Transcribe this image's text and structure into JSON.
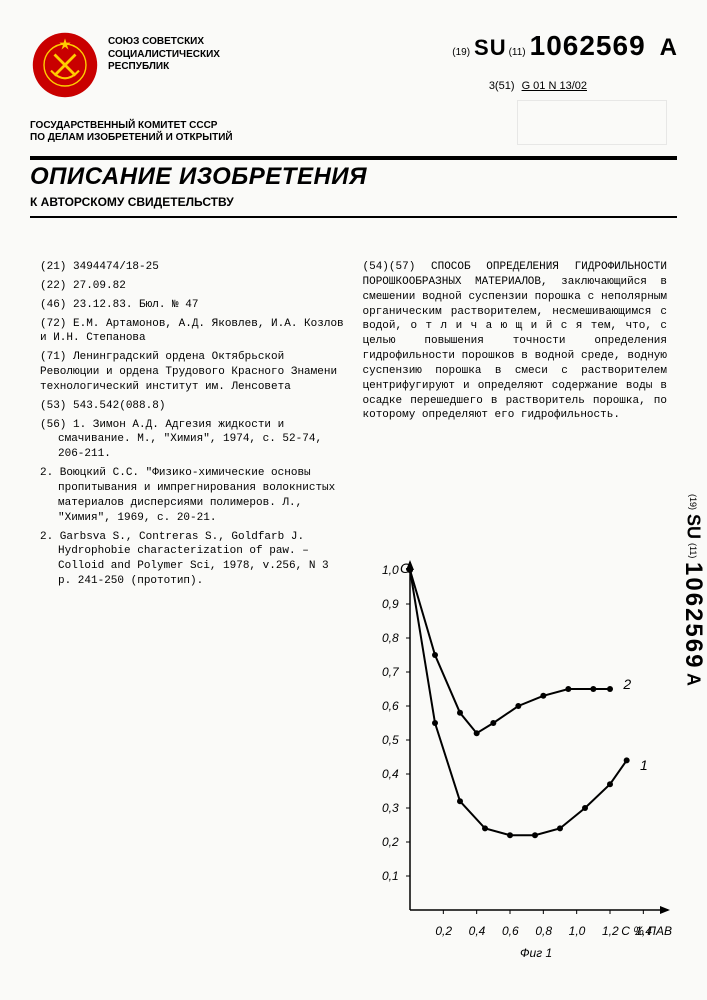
{
  "header": {
    "issuer_line1": "СОЮЗ СОВЕТСКИХ",
    "issuer_line2": "СОЦИАЛИСТИЧЕСКИХ",
    "issuer_line3": "РЕСПУБЛИК",
    "kind19": "(19)",
    "cc": "SU",
    "kind11": "(11)",
    "docnum": "1062569",
    "kindA": "A",
    "ipc_label": "3(51)",
    "ipc": "G 01 N 13/02",
    "committee_l1": "ГОСУДАРСТВЕННЫЙ КОМИТЕТ СССР",
    "committee_l2": "ПО ДЕЛАМ ИЗОБРЕТЕНИЙ И ОТКРЫТИЙ",
    "title": "ОПИСАНИЕ ИЗОБРЕТЕНИЯ",
    "subtitle": "К АВТОРСКОМУ СВИДЕТЕЛЬСТВУ"
  },
  "biblio": {
    "f21": "(21) 3494474/18-25",
    "f22": "(22) 27.09.82",
    "f46": "(46) 23.12.83. Бюл. № 47",
    "f72": "(72) Е.М. Артамонов, А.Д. Яковлев, И.А. Козлов и И.Н. Степанова",
    "f71": "(71) Ленинградский ордена Октябрьской Революции и ордена Трудового Красного Знамени технологический институт им. Ленсовета",
    "f53": "(53) 543.542(088.8)",
    "f56a": "(56) 1. Зимон А.Д. Адгезия жидкости и смачивание. М., \"Химия\", 1974, с. 52-74, 206-211.",
    "f56b": "2. Воюцкий С.С. \"Физико-химические основы пропитывания и импрегнирования волокнистых материалов дисперсиями полимеров. Л., \"Химия\", 1969, с. 20-21.",
    "f56c": "2. Garbsva S., Contreras S., Goldfarb J. Hydrophobie characterization of paw. – Colloid and Polymer Sci, 1978, v.256, N 3 p. 241-250 (прототип)."
  },
  "abstract": "(54)(57) СПОСОБ ОПРЕДЕЛЕНИЯ ГИДРОФИЛЬНОСТИ ПОРОШКООБРАЗНЫХ МАТЕРИАЛОВ, заключающийся в смешении водной суспензии порошка с неполярным органическим растворителем, несмешивающимся с водой, о т л и ч а ю щ и й с я  тем, что, с целью повышения точности определения гидрофильности порошков в водной среде, водную суспензию порошка в смеси с растворителем центрифугируют и определяют содержание воды в осадке перешедшего в растворитель порошка, по которому определяют его гидрофильность.",
  "figure": {
    "type": "line",
    "y_label": "G",
    "x_label": "C % ПАВ",
    "caption": "Фиг 1",
    "ylim": [
      0,
      1.0
    ],
    "xlim": [
      0,
      1.5
    ],
    "y_ticks": [
      0.1,
      0.2,
      0.3,
      0.4,
      0.5,
      0.6,
      0.7,
      0.8,
      0.9,
      1.0
    ],
    "x_ticks": [
      0.2,
      0.4,
      0.6,
      0.8,
      1.0,
      1.2,
      1.4
    ],
    "series": [
      {
        "name": "1",
        "label_pos": {
          "x": 1.38,
          "y": 0.42
        },
        "color": "#000000",
        "line_width": 2,
        "marker": "circle",
        "marker_size": 4,
        "points": [
          {
            "x": 0.0,
            "y": 1.0
          },
          {
            "x": 0.15,
            "y": 0.55
          },
          {
            "x": 0.3,
            "y": 0.32
          },
          {
            "x": 0.45,
            "y": 0.24
          },
          {
            "x": 0.6,
            "y": 0.22
          },
          {
            "x": 0.75,
            "y": 0.22
          },
          {
            "x": 0.9,
            "y": 0.24
          },
          {
            "x": 1.05,
            "y": 0.3
          },
          {
            "x": 1.2,
            "y": 0.37
          },
          {
            "x": 1.3,
            "y": 0.44
          }
        ]
      },
      {
        "name": "2",
        "label_pos": {
          "x": 1.28,
          "y": 0.66
        },
        "color": "#000000",
        "line_width": 2,
        "marker": "circle",
        "marker_size": 4,
        "points": [
          {
            "x": 0.0,
            "y": 1.0
          },
          {
            "x": 0.15,
            "y": 0.75
          },
          {
            "x": 0.3,
            "y": 0.58
          },
          {
            "x": 0.4,
            "y": 0.52
          },
          {
            "x": 0.5,
            "y": 0.55
          },
          {
            "x": 0.65,
            "y": 0.6
          },
          {
            "x": 0.8,
            "y": 0.63
          },
          {
            "x": 0.95,
            "y": 0.65
          },
          {
            "x": 1.1,
            "y": 0.65
          },
          {
            "x": 1.2,
            "y": 0.65
          }
        ]
      }
    ],
    "axis_color": "#000000",
    "background_color": "#ffffff"
  },
  "side": {
    "kind19": "(19)",
    "cc": "SU",
    "kind11": "(11)",
    "num": "1062569",
    "kindA": "A"
  }
}
